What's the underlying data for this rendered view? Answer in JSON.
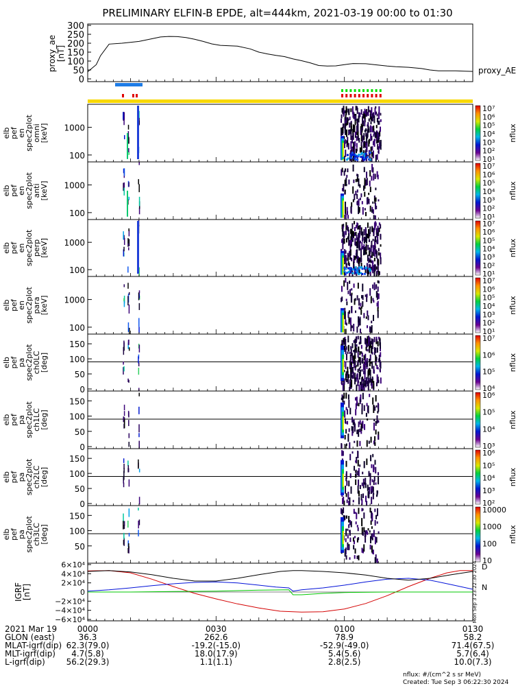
{
  "title": "PRELIMINARY ELFIN-B EPDE, alt=444km, 2021-03-19 00:00 to 01:30",
  "colors": {
    "fgm_red": "#d40000",
    "fgm_blue": "#0010d8",
    "fgm_green": "#00c800",
    "sci_blue": "#1e7ce6",
    "orbit_green": "#00e000",
    "orbit_red": "#e00000",
    "status_yellow": "#f8d800"
  },
  "panels": [
    {
      "id": "proxy-ae",
      "ylabel": [
        "proxy_ae",
        "[nT]"
      ],
      "right_label": "proxy_AE"
    },
    {
      "id": "omni",
      "ylabel": [
        "elb",
        "pef",
        "en",
        "spec2plot",
        "omni",
        "[keV]"
      ],
      "yticks": [
        "1000",
        "100"
      ],
      "zlabel": "nflux",
      "cticks": [
        "10⁷",
        "10⁶",
        "10⁵",
        "10⁴",
        "10³",
        "10²",
        "10¹"
      ]
    },
    {
      "id": "anti",
      "ylabel": [
        "elb",
        "pef",
        "en",
        "spec2plot",
        "anti",
        "[keV]"
      ],
      "yticks": [
        "1000",
        "100"
      ],
      "zlabel": "nflux",
      "cticks": [
        "10⁷",
        "10⁶",
        "10⁵",
        "10⁴",
        "10³",
        "10²",
        "10¹"
      ]
    },
    {
      "id": "perp",
      "ylabel": [
        "elb",
        "pef",
        "en",
        "spec2plot",
        "perp",
        "[keV]"
      ],
      "yticks": [
        "1000",
        "100"
      ],
      "zlabel": "nflux",
      "cticks": [
        "10⁷",
        "10⁶",
        "10⁵",
        "10⁴",
        "10³",
        "10²",
        "10¹"
      ]
    },
    {
      "id": "para",
      "ylabel": [
        "elb",
        "pef",
        "en",
        "spec2plot",
        "para",
        "[keV]"
      ],
      "yticks": [
        "1000",
        "100"
      ],
      "zlabel": "nflux",
      "cticks": [
        "10⁷",
        "10⁶",
        "10⁵",
        "10⁴",
        "10³",
        "10²",
        "10¹"
      ]
    },
    {
      "id": "ch0lc",
      "ylabel": [
        "elb",
        "pef",
        "pa",
        "spec2plot",
        "ch0LC",
        "[deg]"
      ],
      "yticks": [
        "150",
        "100",
        "50",
        "0"
      ],
      "zlabel": "nflux",
      "cticks": [
        "10⁷",
        "10⁶",
        "10⁵",
        "10⁴"
      ]
    },
    {
      "id": "ch1lc",
      "ylabel": [
        "elb",
        "pef",
        "pa",
        "spec2plot",
        "ch1LC",
        "[deg]"
      ],
      "yticks": [
        "150",
        "100",
        "50",
        "0"
      ],
      "zlabel": "nflux",
      "cticks": [
        "10⁶",
        "10⁵",
        "10⁴",
        "10³"
      ]
    },
    {
      "id": "ch2lc",
      "ylabel": [
        "elb",
        "pef",
        "pa",
        "spec2plot",
        "ch2LC",
        "[deg]"
      ],
      "yticks": [
        "150",
        "100",
        "50",
        "0"
      ],
      "zlabel": "nflux",
      "cticks": [
        "10⁶",
        "10⁵",
        "10⁴",
        "10³",
        "10²"
      ]
    },
    {
      "id": "ch3lc",
      "ylabel": [
        "elb",
        "pef",
        "pa",
        "spec2plot",
        "ch3LC",
        "[deg]"
      ],
      "yticks": [
        "150",
        "100",
        "50"
      ],
      "zlabel": "nflux",
      "cticks": [
        "10000",
        "1000",
        "100",
        "10"
      ]
    },
    {
      "id": "igrf",
      "ylabel": [
        "IGRF",
        "[nT]"
      ]
    }
  ],
  "chart_data": {
    "type": "line",
    "title": "PRELIMINARY ELFIN-B EPDE, alt=444km, 2021-03-19 00:00 to 01:30",
    "proxy_ae": {
      "ylabel": "proxy_ae [nT]",
      "ylim": [
        0,
        300
      ],
      "yticks": [
        0,
        50,
        100,
        150,
        200,
        250,
        300
      ],
      "x": [
        0,
        2,
        3,
        5,
        8,
        12,
        15,
        17,
        19,
        21,
        23,
        25,
        27,
        29,
        31,
        35,
        38,
        40,
        42,
        44,
        46,
        48,
        50,
        52,
        54,
        56,
        58,
        60,
        62,
        65,
        67,
        70,
        72,
        75,
        78,
        80,
        82,
        84,
        86,
        88,
        90
      ],
      "values": [
        40,
        80,
        130,
        195,
        200,
        210,
        225,
        235,
        238,
        237,
        232,
        222,
        210,
        196,
        188,
        184,
        168,
        150,
        140,
        132,
        125,
        112,
        102,
        90,
        75,
        72,
        73,
        80,
        86,
        85,
        80,
        72,
        68,
        65,
        58,
        50,
        45,
        45,
        45,
        43,
        42
      ]
    },
    "igrf": {
      "ylabel": "IGRF [nT]",
      "ylim": [
        -60000,
        60000
      ],
      "yticks": [
        "6×10⁴",
        "4×10⁴",
        "2×10⁴",
        "0",
        "−2×10⁴",
        "−4×10⁴",
        "−6×10⁴"
      ],
      "series": [
        {
          "name": "D",
          "x": [
            0,
            5,
            10,
            15,
            20,
            25,
            30,
            35,
            40,
            45,
            50,
            55,
            60,
            65,
            70,
            75,
            80,
            84,
            87,
            90
          ],
          "values": [
            46000,
            47000,
            42000,
            28000,
            12000,
            -3000,
            -15000,
            -26000,
            -35000,
            -42000,
            -44000,
            -43000,
            -37000,
            -25000,
            -8000,
            12000,
            30000,
            42000,
            47000,
            47000
          ]
        },
        {
          "name": "N",
          "x": [
            0,
            5,
            10,
            15,
            20,
            25,
            30,
            35,
            40,
            44,
            47,
            48,
            50,
            55,
            60,
            65,
            70,
            75,
            80,
            85,
            90
          ],
          "values": [
            2000,
            5000,
            9000,
            14000,
            18000,
            21000,
            22000,
            20000,
            15000,
            11000,
            9000,
            2000,
            5000,
            9000,
            15000,
            22000,
            28000,
            30000,
            26000,
            16000,
            6000
          ]
        },
        {
          "name": "",
          "x": [
            0,
            5,
            10,
            15,
            20,
            25,
            30,
            35,
            40,
            45,
            48,
            50,
            55,
            60,
            65,
            70,
            75,
            80,
            85,
            90
          ],
          "values": [
            45000,
            47000,
            44000,
            38000,
            30000,
            24000,
            24000,
            30000,
            38000,
            45000,
            47000,
            47000,
            45000,
            42000,
            37000,
            30000,
            26000,
            30000,
            38000,
            45000
          ]
        },
        {
          "name": "",
          "x": [
            0,
            10,
            20,
            30,
            40,
            47,
            48,
            50,
            55,
            60,
            70,
            80,
            90
          ],
          "values": [
            0,
            0,
            1000,
            2000,
            4000,
            5000,
            -6000,
            -6000,
            -3000,
            -1000,
            0,
            0,
            0
          ]
        }
      ],
      "side_labels": [
        "D",
        "N"
      ],
      "vertical_annotation": "Mon Sep  3 23:22:30 2024"
    },
    "x_axis": {
      "ticks": [
        "0000",
        "0030",
        "0100",
        "0130"
      ],
      "tick_minutes": [
        0,
        30,
        60,
        90
      ],
      "rows": [
        {
          "label": "2021 Mar 19",
          "values": [
            "0000",
            "0030",
            "0100",
            "0130"
          ]
        },
        {
          "label": "GLON (east)",
          "values": [
            "36.3",
            "262.6",
            "78.9",
            "58.2"
          ]
        },
        {
          "label": "MLAT-igrf(dip)",
          "values": [
            "62.3(79.0)",
            "-19.2(-15.0)",
            "-52.9(-49.0)",
            "71.4(67.5)"
          ]
        },
        {
          "label": "MLT-igrf(dip)",
          "values": [
            "4.7(5.8)",
            "18.0(17.9)",
            "5.4(5.6)",
            "5.7(6.4)"
          ]
        },
        {
          "label": "L-igrf(dip)",
          "values": [
            "56.2(29.3)",
            "1.1(1.1)",
            "2.8(2.5)",
            "10.0(7.3)"
          ]
        }
      ]
    }
  },
  "footer": {
    "units": "nflux: #/(cm^2 s sr MeV)",
    "created": "Created: Tue Sep  3 06:22:30 2024"
  }
}
